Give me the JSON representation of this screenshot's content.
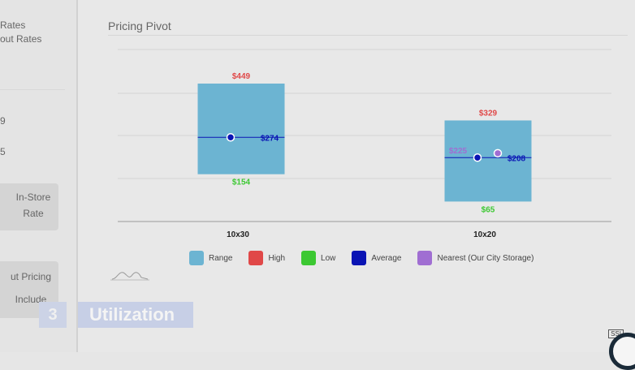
{
  "sidebar": {
    "items": [
      {
        "text": "Rates"
      },
      {
        "text": "out Rates"
      },
      {
        "text": "9"
      },
      {
        "text": "5"
      }
    ],
    "cards": [
      {
        "line1": "In-Store",
        "line2": "Rate"
      },
      {
        "line1": "ut Pricing",
        "line2": "Include"
      }
    ]
  },
  "main": {
    "title": "Pricing Pivot"
  },
  "chart_data": {
    "type": "box",
    "categories": [
      "10x30",
      "10x20"
    ],
    "series": [
      {
        "name": "High",
        "values": [
          449,
          329
        ]
      },
      {
        "name": "Low",
        "values": [
          154,
          65
        ]
      },
      {
        "name": "Average",
        "values": [
          274,
          208
        ]
      },
      {
        "name": "Nearest (Our City Storage)",
        "values": [
          null,
          225
        ]
      }
    ],
    "labels": {
      "high": [
        "$449",
        "$329"
      ],
      "low": [
        "$154",
        "$65"
      ],
      "average": [
        "$274",
        "$208"
      ],
      "nearest": [
        "",
        "$225"
      ]
    },
    "ylim": [
      0,
      560
    ],
    "grid": true,
    "legend": "bottom",
    "colors": {
      "range": "#6cb4d2",
      "high": "#e04848",
      "low": "#3cc832",
      "average": "#0a14b4",
      "nearest": "#a06ed2"
    }
  },
  "legend": [
    {
      "label": "Range",
      "color": "#6cb4d2"
    },
    {
      "label": "High",
      "color": "#e04848"
    },
    {
      "label": "Low",
      "color": "#3cc832"
    },
    {
      "label": "Average",
      "color": "#0a14b4"
    },
    {
      "label": "Nearest (Our City Storage)",
      "color": "#a06ed2"
    }
  ],
  "section": {
    "number": "3",
    "label": "Utilization"
  },
  "badge": {
    "text": "SSI"
  }
}
